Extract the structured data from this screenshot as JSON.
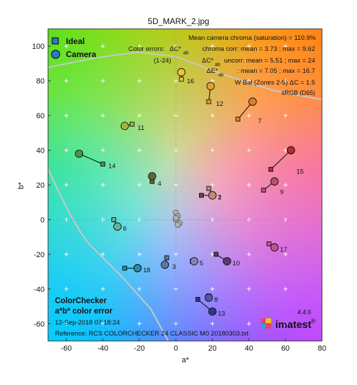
{
  "chart_data": {
    "type": "scatter",
    "title": "5D_MARK_2.jpg",
    "xlabel": "a*",
    "ylabel": "b*",
    "xlim": [
      -70,
      80
    ],
    "ylim": [
      -70,
      110
    ],
    "xticks": [
      -60,
      -40,
      -20,
      0,
      20,
      40,
      60,
      80
    ],
    "yticks": [
      -60,
      -40,
      -20,
      0,
      20,
      40,
      60,
      80,
      100
    ],
    "legend": {
      "position": "top-left",
      "entries": [
        "Ideal",
        "Camera"
      ]
    },
    "series": [
      {
        "name": "Ideal",
        "marker": "square"
      },
      {
        "name": "Camera",
        "marker": "circle"
      }
    ],
    "patches": [
      {
        "id": "1",
        "ideal": [
          14,
          14
        ],
        "camera": [
          20,
          14
        ],
        "color": "#6b4a3a"
      },
      {
        "id": "2",
        "ideal": [
          18,
          18
        ],
        "camera": [
          20,
          14
        ],
        "color": "#c28a75"
      },
      {
        "id": "3",
        "ideal": [
          -5,
          -22
        ],
        "camera": [
          -6,
          -26
        ],
        "color": "#5a7aa0"
      },
      {
        "id": "4",
        "ideal": [
          -13,
          22
        ],
        "camera": [
          -13,
          25
        ],
        "color": "#5a6a3a"
      },
      {
        "id": "5",
        "ideal": [
          9,
          -24
        ],
        "camera": [
          10,
          -24
        ],
        "color": "#8a80b0"
      },
      {
        "id": "6",
        "ideal": [
          -34,
          0
        ],
        "camera": [
          -32,
          -4
        ],
        "color": "#6ab0a0"
      },
      {
        "id": "7",
        "ideal": [
          34,
          58
        ],
        "camera": [
          42,
          68
        ],
        "color": "#d88030"
      },
      {
        "id": "8",
        "ideal": [
          18,
          -44
        ],
        "camera": [
          18,
          -45
        ],
        "color": "#4a5aa8"
      },
      {
        "id": "9",
        "ideal": [
          48,
          17
        ],
        "camera": [
          54,
          22
        ],
        "color": "#c05068"
      },
      {
        "id": "10",
        "ideal": [
          22,
          -20
        ],
        "camera": [
          28,
          -24
        ],
        "color": "#5a3a6a"
      },
      {
        "id": "11",
        "ideal": [
          -24,
          55
        ],
        "camera": [
          -28,
          54
        ],
        "color": "#a0b83a"
      },
      {
        "id": "12",
        "ideal": [
          18,
          68
        ],
        "camera": [
          19,
          77
        ],
        "color": "#e0a030"
      },
      {
        "id": "13",
        "ideal": [
          12,
          -46
        ],
        "camera": [
          20,
          -53
        ],
        "color": "#2a3a90"
      },
      {
        "id": "14",
        "ideal": [
          -40,
          32
        ],
        "camera": [
          -53,
          38
        ],
        "color": "#4a944a"
      },
      {
        "id": "15",
        "ideal": [
          52,
          29
        ],
        "camera": [
          63,
          40
        ],
        "color": "#b03030"
      },
      {
        "id": "16",
        "ideal": [
          3,
          81
        ],
        "camera": [
          3,
          85
        ],
        "color": "#e8c830"
      },
      {
        "id": "17",
        "ideal": [
          51,
          -14
        ],
        "camera": [
          54,
          -16
        ],
        "color": "#c05098"
      },
      {
        "id": "18",
        "ideal": [
          -28,
          -28
        ],
        "camera": [
          -21,
          -28
        ],
        "color": "#2a88a8"
      }
    ]
  },
  "annotations": {
    "line1": "Mean camera chroma (saturation) = 110.9%",
    "line2_left": "Color errors:",
    "line2_sym": "ΔC*",
    "line2_sub": "ab",
    "line2_right": "chroma corr:  mean = 3.73 ;  max = 9.62",
    "line3_left": "(1-24)",
    "line3_sym": "ΔC*",
    "line3_sub": "ab",
    "line3_right": "uncorr:  mean = 5.51 ;  max = 24",
    "line4_sym": "ΔE*",
    "line4_sub": "ab",
    "line4_right": ":  mean = 7.05 ;  max = 16.7",
    "line5": "W Bal (Zones 2-5)  ΔC = 1.5",
    "line6": "sRGB (D65)",
    "bottom1": "ColorChecker",
    "bottom2": "a*b* color error",
    "date": "12-Sep-2018 07:18:24",
    "reference": "Reference: RCS COLORCHECKER 24 CLASSIC M0 20180303.txt",
    "version": "4.4.6",
    "logo": "imatest"
  },
  "colors": {
    "ideal_marker_edge": "#000000",
    "connector": "#000000",
    "gamut_line": "#c8c8c8"
  }
}
